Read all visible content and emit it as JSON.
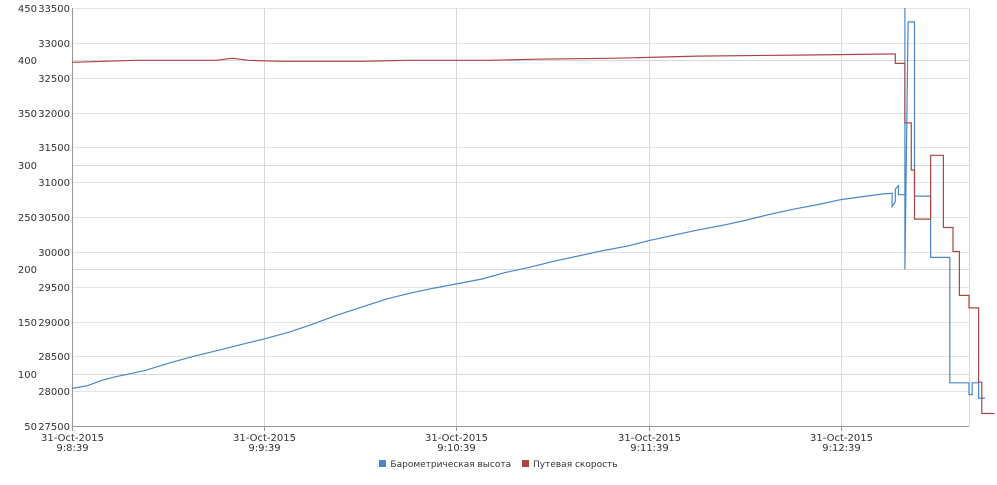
{
  "chart_data": {
    "type": "line",
    "title": "",
    "xlabel": "",
    "grid": true,
    "legend_position": "bottom-center",
    "x_ticks": [
      {
        "date": "31-Oct-2015",
        "time": "9:8:39",
        "t": 0
      },
      {
        "date": "31-Oct-2015",
        "time": "9:9:39",
        "t": 60
      },
      {
        "date": "31-Oct-2015",
        "time": "9:10:39",
        "t": 120
      },
      {
        "date": "31-Oct-2015",
        "time": "9:11:39",
        "t": 180
      },
      {
        "date": "31-Oct-2015",
        "time": "9:12:39",
        "t": 240
      }
    ],
    "xlim": [
      0,
      280
    ],
    "y_left": {
      "ticks": [
        "50",
        "100",
        "150",
        "200",
        "250",
        "300",
        "350",
        "400",
        "450"
      ],
      "lim": [
        50,
        450
      ]
    },
    "y_right": {
      "ticks": [
        "27500",
        "28000",
        "28500",
        "29000",
        "29500",
        "30000",
        "30500",
        "31000",
        "31500",
        "32000",
        "32500",
        "33000",
        "33500"
      ],
      "lim": [
        27500,
        33500
      ]
    },
    "series": [
      {
        "name": "Барометрическая высота",
        "color": "#4a86c8",
        "axis": "right",
        "points": [
          [
            0,
            28040
          ],
          [
            5,
            28080
          ],
          [
            9,
            28150
          ],
          [
            13,
            28200
          ],
          [
            18,
            28250
          ],
          [
            23,
            28300
          ],
          [
            30,
            28400
          ],
          [
            38,
            28500
          ],
          [
            45,
            28580
          ],
          [
            52,
            28660
          ],
          [
            60,
            28750
          ],
          [
            68,
            28850
          ],
          [
            75,
            28960
          ],
          [
            82,
            29080
          ],
          [
            90,
            29200
          ],
          [
            98,
            29320
          ],
          [
            105,
            29400
          ],
          [
            113,
            29480
          ],
          [
            120,
            29540
          ],
          [
            128,
            29610
          ],
          [
            135,
            29700
          ],
          [
            143,
            29780
          ],
          [
            150,
            29860
          ],
          [
            158,
            29940
          ],
          [
            165,
            30010
          ],
          [
            173,
            30080
          ],
          [
            180,
            30160
          ],
          [
            188,
            30240
          ],
          [
            195,
            30310
          ],
          [
            203,
            30380
          ],
          [
            210,
            30450
          ],
          [
            218,
            30540
          ],
          [
            225,
            30610
          ],
          [
            233,
            30680
          ],
          [
            240,
            30750
          ],
          [
            248,
            30800
          ],
          [
            253,
            30830
          ],
          [
            256,
            30840
          ],
          [
            256,
            30650
          ],
          [
            257,
            30720
          ],
          [
            257,
            30900
          ],
          [
            258,
            30950
          ],
          [
            258,
            30820
          ],
          [
            260,
            30820
          ],
          [
            260,
            33500
          ],
          [
            260,
            29750
          ],
          [
            261,
            33300
          ],
          [
            263,
            33300
          ],
          [
            263,
            30800
          ],
          [
            268,
            30800
          ],
          [
            268,
            29920
          ],
          [
            274,
            29920
          ],
          [
            274,
            28120
          ],
          [
            280,
            28120
          ],
          [
            280,
            27950
          ],
          [
            281,
            27950
          ],
          [
            281,
            28120
          ],
          [
            283,
            28120
          ],
          [
            283,
            27900
          ],
          [
            285,
            27900
          ]
        ]
      },
      {
        "name": "Путевая скорость",
        "color": "#aa4643",
        "axis": "left",
        "points": [
          [
            0,
            398
          ],
          [
            10,
            399
          ],
          [
            20,
            400
          ],
          [
            45,
            400
          ],
          [
            50,
            402
          ],
          [
            55,
            400
          ],
          [
            65,
            399
          ],
          [
            90,
            399
          ],
          [
            105,
            400
          ],
          [
            130,
            400
          ],
          [
            145,
            401
          ],
          [
            170,
            402
          ],
          [
            195,
            404
          ],
          [
            230,
            405
          ],
          [
            255,
            406
          ],
          [
            257,
            406
          ],
          [
            257,
            397
          ],
          [
            260,
            397
          ],
          [
            260,
            340
          ],
          [
            262,
            340
          ],
          [
            262,
            295
          ],
          [
            263,
            295
          ],
          [
            263,
            248
          ],
          [
            268,
            248
          ],
          [
            268,
            309
          ],
          [
            272,
            309
          ],
          [
            272,
            240
          ],
          [
            275,
            240
          ],
          [
            275,
            217
          ],
          [
            277,
            217
          ],
          [
            277,
            175
          ],
          [
            280,
            175
          ],
          [
            280,
            163
          ],
          [
            283,
            163
          ],
          [
            283,
            92
          ],
          [
            284,
            92
          ],
          [
            284,
            62
          ],
          [
            288,
            62
          ]
        ]
      }
    ]
  }
}
